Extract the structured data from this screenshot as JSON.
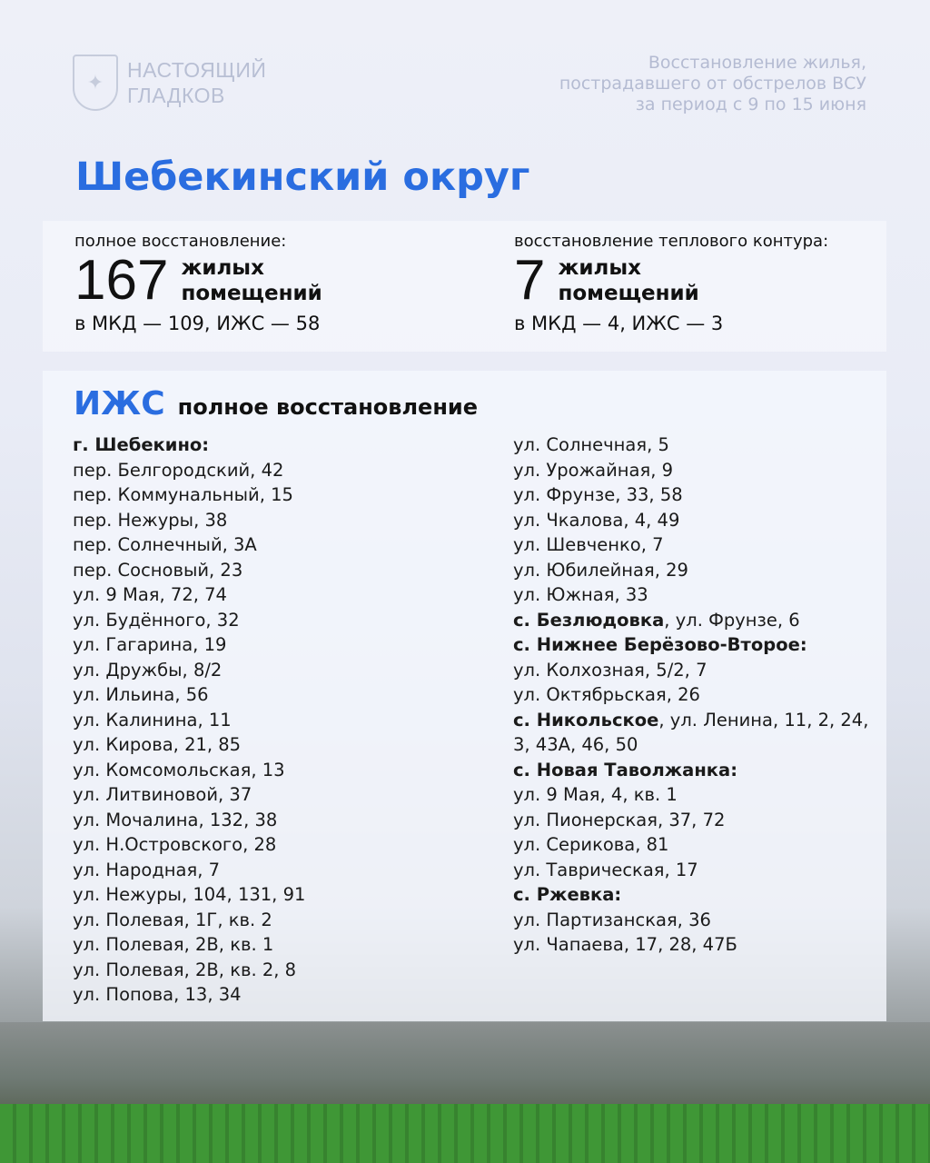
{
  "header": {
    "logo_line1": "НАСТОЯЩИЙ",
    "logo_line2": "ГЛАДКОВ",
    "subtitle_lines": [
      "Восстановление жилья,",
      "пострадавшего от обстрелов ВСУ",
      "за период с 9 по 15 июня"
    ]
  },
  "title": "Шебекинский округ",
  "stats": [
    {
      "label": "полное восстановление:",
      "number": "167",
      "unit1": "жилых",
      "unit2": "помещений",
      "breakdown": "в МКД — 109, ИЖС — 58"
    },
    {
      "label": "восстановление теплового контура:",
      "number": "7",
      "unit1": "жилых",
      "unit2": "помещений",
      "breakdown": "в МКД — 4, ИЖС — 3"
    }
  ],
  "list": {
    "heading_accent": "ИЖС",
    "heading": "полное восстановление",
    "left": [
      {
        "b": "г. Шебекино:",
        "t": ""
      },
      {
        "b": "",
        "t": "пер. Белгородский, 42"
      },
      {
        "b": "",
        "t": "пер. Коммунальный, 15"
      },
      {
        "b": "",
        "t": "пер. Нежуры, 38"
      },
      {
        "b": "",
        "t": "пер. Солнечный, 3А"
      },
      {
        "b": "",
        "t": "пер. Сосновый, 23"
      },
      {
        "b": "",
        "t": "ул. 9 Мая, 72, 74"
      },
      {
        "b": "",
        "t": "ул. Будённого, 32"
      },
      {
        "b": "",
        "t": "ул. Гагарина, 19"
      },
      {
        "b": "",
        "t": "ул. Дружбы, 8/2"
      },
      {
        "b": "",
        "t": "ул. Ильина, 56"
      },
      {
        "b": "",
        "t": "ул. Калинина, 11"
      },
      {
        "b": "",
        "t": "ул. Кирова, 21, 85"
      },
      {
        "b": "",
        "t": "ул. Комсомольская, 13"
      },
      {
        "b": "",
        "t": "ул. Литвиновой, 37"
      },
      {
        "b": "",
        "t": "ул. Мочалина, 132, 38"
      },
      {
        "b": "",
        "t": "ул. Н.Островского, 28"
      },
      {
        "b": "",
        "t": "ул. Народная, 7"
      },
      {
        "b": "",
        "t": "ул. Нежуры, 104, 131, 91"
      },
      {
        "b": "",
        "t": "ул. Полевая, 1Г, кв. 2"
      },
      {
        "b": "",
        "t": "ул. Полевая, 2В, кв. 1"
      },
      {
        "b": "",
        "t": "ул. Полевая, 2В, кв. 2, 8"
      },
      {
        "b": "",
        "t": "ул. Попова, 13, 34"
      }
    ],
    "right": [
      {
        "b": "",
        "t": "ул. Солнечная, 5"
      },
      {
        "b": "",
        "t": "ул. Урожайная, 9"
      },
      {
        "b": "",
        "t": "ул. Фрунзе, 33, 58"
      },
      {
        "b": "",
        "t": "ул. Чкалова, 4, 49"
      },
      {
        "b": "",
        "t": "ул. Шевченко, 7"
      },
      {
        "b": "",
        "t": "ул. Юбилейная, 29"
      },
      {
        "b": "",
        "t": "ул. Южная, 33"
      },
      {
        "b": "с. Безлюдовка",
        "t": ", ул. Фрунзе, 6"
      },
      {
        "b": "с. Нижнее Берёзово-Второе:",
        "t": ""
      },
      {
        "b": "",
        "t": "ул. Колхозная, 5/2, 7"
      },
      {
        "b": "",
        "t": "ул. Октябрьская, 26"
      },
      {
        "b": "с. Никольское",
        "t": ", ул. Ленина, 11, 2, 24,"
      },
      {
        "b": "",
        "t": "3, 43А, 46, 50"
      },
      {
        "b": "с. Новая Таволжанка:",
        "t": ""
      },
      {
        "b": "",
        "t": "ул. 9 Мая, 4, кв. 1"
      },
      {
        "b": "",
        "t": "ул. Пионерская, 37, 72"
      },
      {
        "b": "",
        "t": "ул. Серикова, 81"
      },
      {
        "b": "",
        "t": "ул. Таврическая, 17"
      },
      {
        "b": "с. Ржевка:",
        "t": ""
      },
      {
        "b": "",
        "t": "ул. Партизанская, 36"
      },
      {
        "b": "",
        "t": "ул. Чапаева, 17, 28, 47Б"
      }
    ]
  },
  "colors": {
    "accent": "#2a6de0",
    "header_text": "#b4bbd2"
  }
}
